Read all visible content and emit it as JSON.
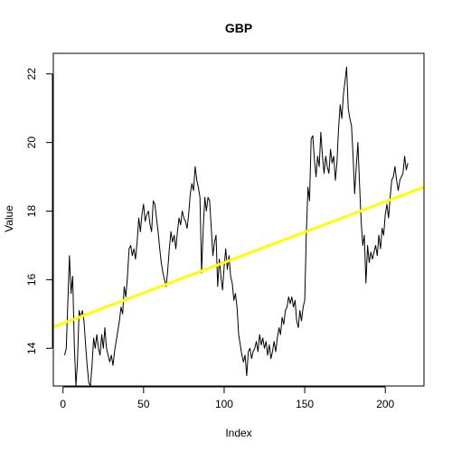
{
  "chart_data": {
    "type": "line",
    "title": "GBP",
    "xlabel": "Index",
    "ylabel": "Value",
    "xlim": [
      -6,
      224
    ],
    "ylim": [
      12.9,
      22.6
    ],
    "x_ticks": [
      0,
      50,
      100,
      150,
      200
    ],
    "y_ticks": [
      14,
      16,
      18,
      20,
      22
    ],
    "grid": false,
    "series": [
      {
        "type": "line",
        "color": "#000000",
        "points": [
          [
            1,
            13.8
          ],
          [
            2,
            14.0
          ],
          [
            3,
            15.3
          ],
          [
            4,
            16.7
          ],
          [
            5,
            15.6
          ],
          [
            6,
            16.1
          ],
          [
            7,
            14.1
          ],
          [
            8,
            12.9
          ],
          [
            9,
            13.6
          ],
          [
            10,
            15.1
          ],
          [
            11,
            14.9
          ],
          [
            12,
            15.1
          ],
          [
            13,
            14.8
          ],
          [
            14,
            14.1
          ],
          [
            15,
            13.5
          ],
          [
            16,
            13.0
          ],
          [
            17,
            12.9
          ],
          [
            18,
            13.5
          ],
          [
            19,
            14.3
          ],
          [
            20,
            14.0
          ],
          [
            21,
            14.4
          ],
          [
            22,
            14.0
          ],
          [
            23,
            13.8
          ],
          [
            24,
            14.4
          ],
          [
            25,
            14.0
          ],
          [
            26,
            14.6
          ],
          [
            27,
            14.0
          ],
          [
            28,
            13.8
          ],
          [
            29,
            13.6
          ],
          [
            30,
            13.8
          ],
          [
            31,
            13.5
          ],
          [
            32,
            13.9
          ],
          [
            33,
            14.2
          ],
          [
            34,
            14.5
          ],
          [
            35,
            14.8
          ],
          [
            36,
            15.2
          ],
          [
            37,
            15.0
          ],
          [
            38,
            15.8
          ],
          [
            39,
            15.5
          ],
          [
            40,
            16.1
          ],
          [
            41,
            16.9
          ],
          [
            42,
            17.0
          ],
          [
            43,
            16.7
          ],
          [
            44,
            16.9
          ],
          [
            45,
            16.6
          ],
          [
            46,
            17.1
          ],
          [
            47,
            17.8
          ],
          [
            48,
            17.4
          ],
          [
            49,
            17.9
          ],
          [
            50,
            18.2
          ],
          [
            51,
            17.7
          ],
          [
            52,
            17.9
          ],
          [
            53,
            18.0
          ],
          [
            54,
            17.6
          ],
          [
            55,
            17.4
          ],
          [
            56,
            18.3
          ],
          [
            57,
            18.2
          ],
          [
            58,
            17.8
          ],
          [
            59,
            17.4
          ],
          [
            60,
            16.9
          ],
          [
            61,
            16.5
          ],
          [
            62,
            16.2
          ],
          [
            63,
            16.0
          ],
          [
            64,
            15.8
          ],
          [
            65,
            16.3
          ],
          [
            66,
            16.9
          ],
          [
            67,
            17.4
          ],
          [
            68,
            17.1
          ],
          [
            69,
            17.3
          ],
          [
            70,
            16.9
          ],
          [
            71,
            17.4
          ],
          [
            72,
            17.8
          ],
          [
            73,
            17.6
          ],
          [
            74,
            18.0
          ],
          [
            75,
            17.8
          ],
          [
            76,
            17.7
          ],
          [
            77,
            17.5
          ],
          [
            78,
            17.9
          ],
          [
            79,
            18.5
          ],
          [
            80,
            18.8
          ],
          [
            81,
            18.6
          ],
          [
            82,
            19.3
          ],
          [
            83,
            18.9
          ],
          [
            84,
            18.7
          ],
          [
            85,
            18.4
          ],
          [
            86,
            16.2
          ],
          [
            87,
            17.5
          ],
          [
            88,
            18.4
          ],
          [
            89,
            18.0
          ],
          [
            90,
            18.4
          ],
          [
            91,
            18.3
          ],
          [
            92,
            17.5
          ],
          [
            93,
            16.7
          ],
          [
            94,
            17.1
          ],
          [
            95,
            17.3
          ],
          [
            96,
            15.8
          ],
          [
            97,
            16.6
          ],
          [
            98,
            16.1
          ],
          [
            99,
            15.7
          ],
          [
            100,
            16.4
          ],
          [
            101,
            16.9
          ],
          [
            102,
            16.3
          ],
          [
            103,
            16.7
          ],
          [
            104,
            16.1
          ],
          [
            105,
            15.9
          ],
          [
            106,
            15.4
          ],
          [
            107,
            15.6
          ],
          [
            108,
            15.2
          ],
          [
            109,
            14.4
          ],
          [
            110,
            14.1
          ],
          [
            111,
            13.8
          ],
          [
            112,
            13.6
          ],
          [
            113,
            13.8
          ],
          [
            114,
            13.2
          ],
          [
            115,
            13.9
          ],
          [
            116,
            14.0
          ],
          [
            117,
            13.7
          ],
          [
            118,
            13.9
          ],
          [
            119,
            14.0
          ],
          [
            120,
            14.2
          ],
          [
            121,
            13.9
          ],
          [
            122,
            14.4
          ],
          [
            123,
            14.1
          ],
          [
            124,
            14.3
          ],
          [
            125,
            14.0
          ],
          [
            126,
            14.2
          ],
          [
            127,
            13.8
          ],
          [
            128,
            14.1
          ],
          [
            129,
            13.7
          ],
          [
            130,
            13.9
          ],
          [
            131,
            14.2
          ],
          [
            132,
            13.9
          ],
          [
            133,
            14.3
          ],
          [
            134,
            14.6
          ],
          [
            135,
            14.4
          ],
          [
            136,
            14.9
          ],
          [
            137,
            14.7
          ],
          [
            138,
            15.1
          ],
          [
            139,
            15.2
          ],
          [
            140,
            15.5
          ],
          [
            141,
            15.3
          ],
          [
            142,
            15.5
          ],
          [
            143,
            15.2
          ],
          [
            144,
            15.4
          ],
          [
            145,
            14.8
          ],
          [
            146,
            14.6
          ],
          [
            147,
            15.1
          ],
          [
            148,
            14.8
          ],
          [
            149,
            15.2
          ],
          [
            150,
            15.4
          ],
          [
            151,
            17.4
          ],
          [
            152,
            18.7
          ],
          [
            153,
            18.3
          ],
          [
            154,
            20.1
          ],
          [
            155,
            20.2
          ],
          [
            156,
            19.5
          ],
          [
            157,
            19.0
          ],
          [
            158,
            19.6
          ],
          [
            159,
            19.3
          ],
          [
            160,
            20.3
          ],
          [
            161,
            19.6
          ],
          [
            162,
            19.1
          ],
          [
            163,
            19.6
          ],
          [
            164,
            19.3
          ],
          [
            165,
            19.1
          ],
          [
            166,
            19.8
          ],
          [
            167,
            19.4
          ],
          [
            168,
            19.6
          ],
          [
            169,
            18.9
          ],
          [
            170,
            19.4
          ],
          [
            171,
            20.4
          ],
          [
            172,
            21.1
          ],
          [
            173,
            20.7
          ],
          [
            174,
            21.4
          ],
          [
            175,
            21.8
          ],
          [
            176,
            22.2
          ],
          [
            177,
            21.0
          ],
          [
            178,
            20.7
          ],
          [
            179,
            20.5
          ],
          [
            180,
            19.6
          ],
          [
            181,
            18.5
          ],
          [
            182,
            19.3
          ],
          [
            183,
            20.0
          ],
          [
            184,
            18.8
          ],
          [
            185,
            17.7
          ],
          [
            186,
            17.0
          ],
          [
            187,
            17.3
          ],
          [
            188,
            15.9
          ],
          [
            189,
            17.0
          ],
          [
            190,
            16.5
          ],
          [
            191,
            16.8
          ],
          [
            192,
            16.6
          ],
          [
            193,
            16.8
          ],
          [
            194,
            17.0
          ],
          [
            195,
            16.7
          ],
          [
            196,
            17.3
          ],
          [
            197,
            16.9
          ],
          [
            198,
            17.5
          ],
          [
            199,
            17.3
          ],
          [
            200,
            17.9
          ],
          [
            201,
            18.2
          ],
          [
            202,
            17.8
          ],
          [
            203,
            18.4
          ],
          [
            204,
            18.9
          ],
          [
            205,
            19.0
          ],
          [
            206,
            19.3
          ],
          [
            207,
            18.9
          ],
          [
            208,
            18.6
          ],
          [
            209,
            18.9
          ],
          [
            210,
            19.0
          ],
          [
            211,
            19.1
          ],
          [
            212,
            19.6
          ],
          [
            213,
            19.2
          ],
          [
            214,
            19.4
          ]
        ]
      },
      {
        "type": "trend",
        "color": "#FFFF00",
        "points": [
          [
            -6,
            14.62
          ],
          [
            224,
            18.7
          ]
        ]
      }
    ]
  }
}
